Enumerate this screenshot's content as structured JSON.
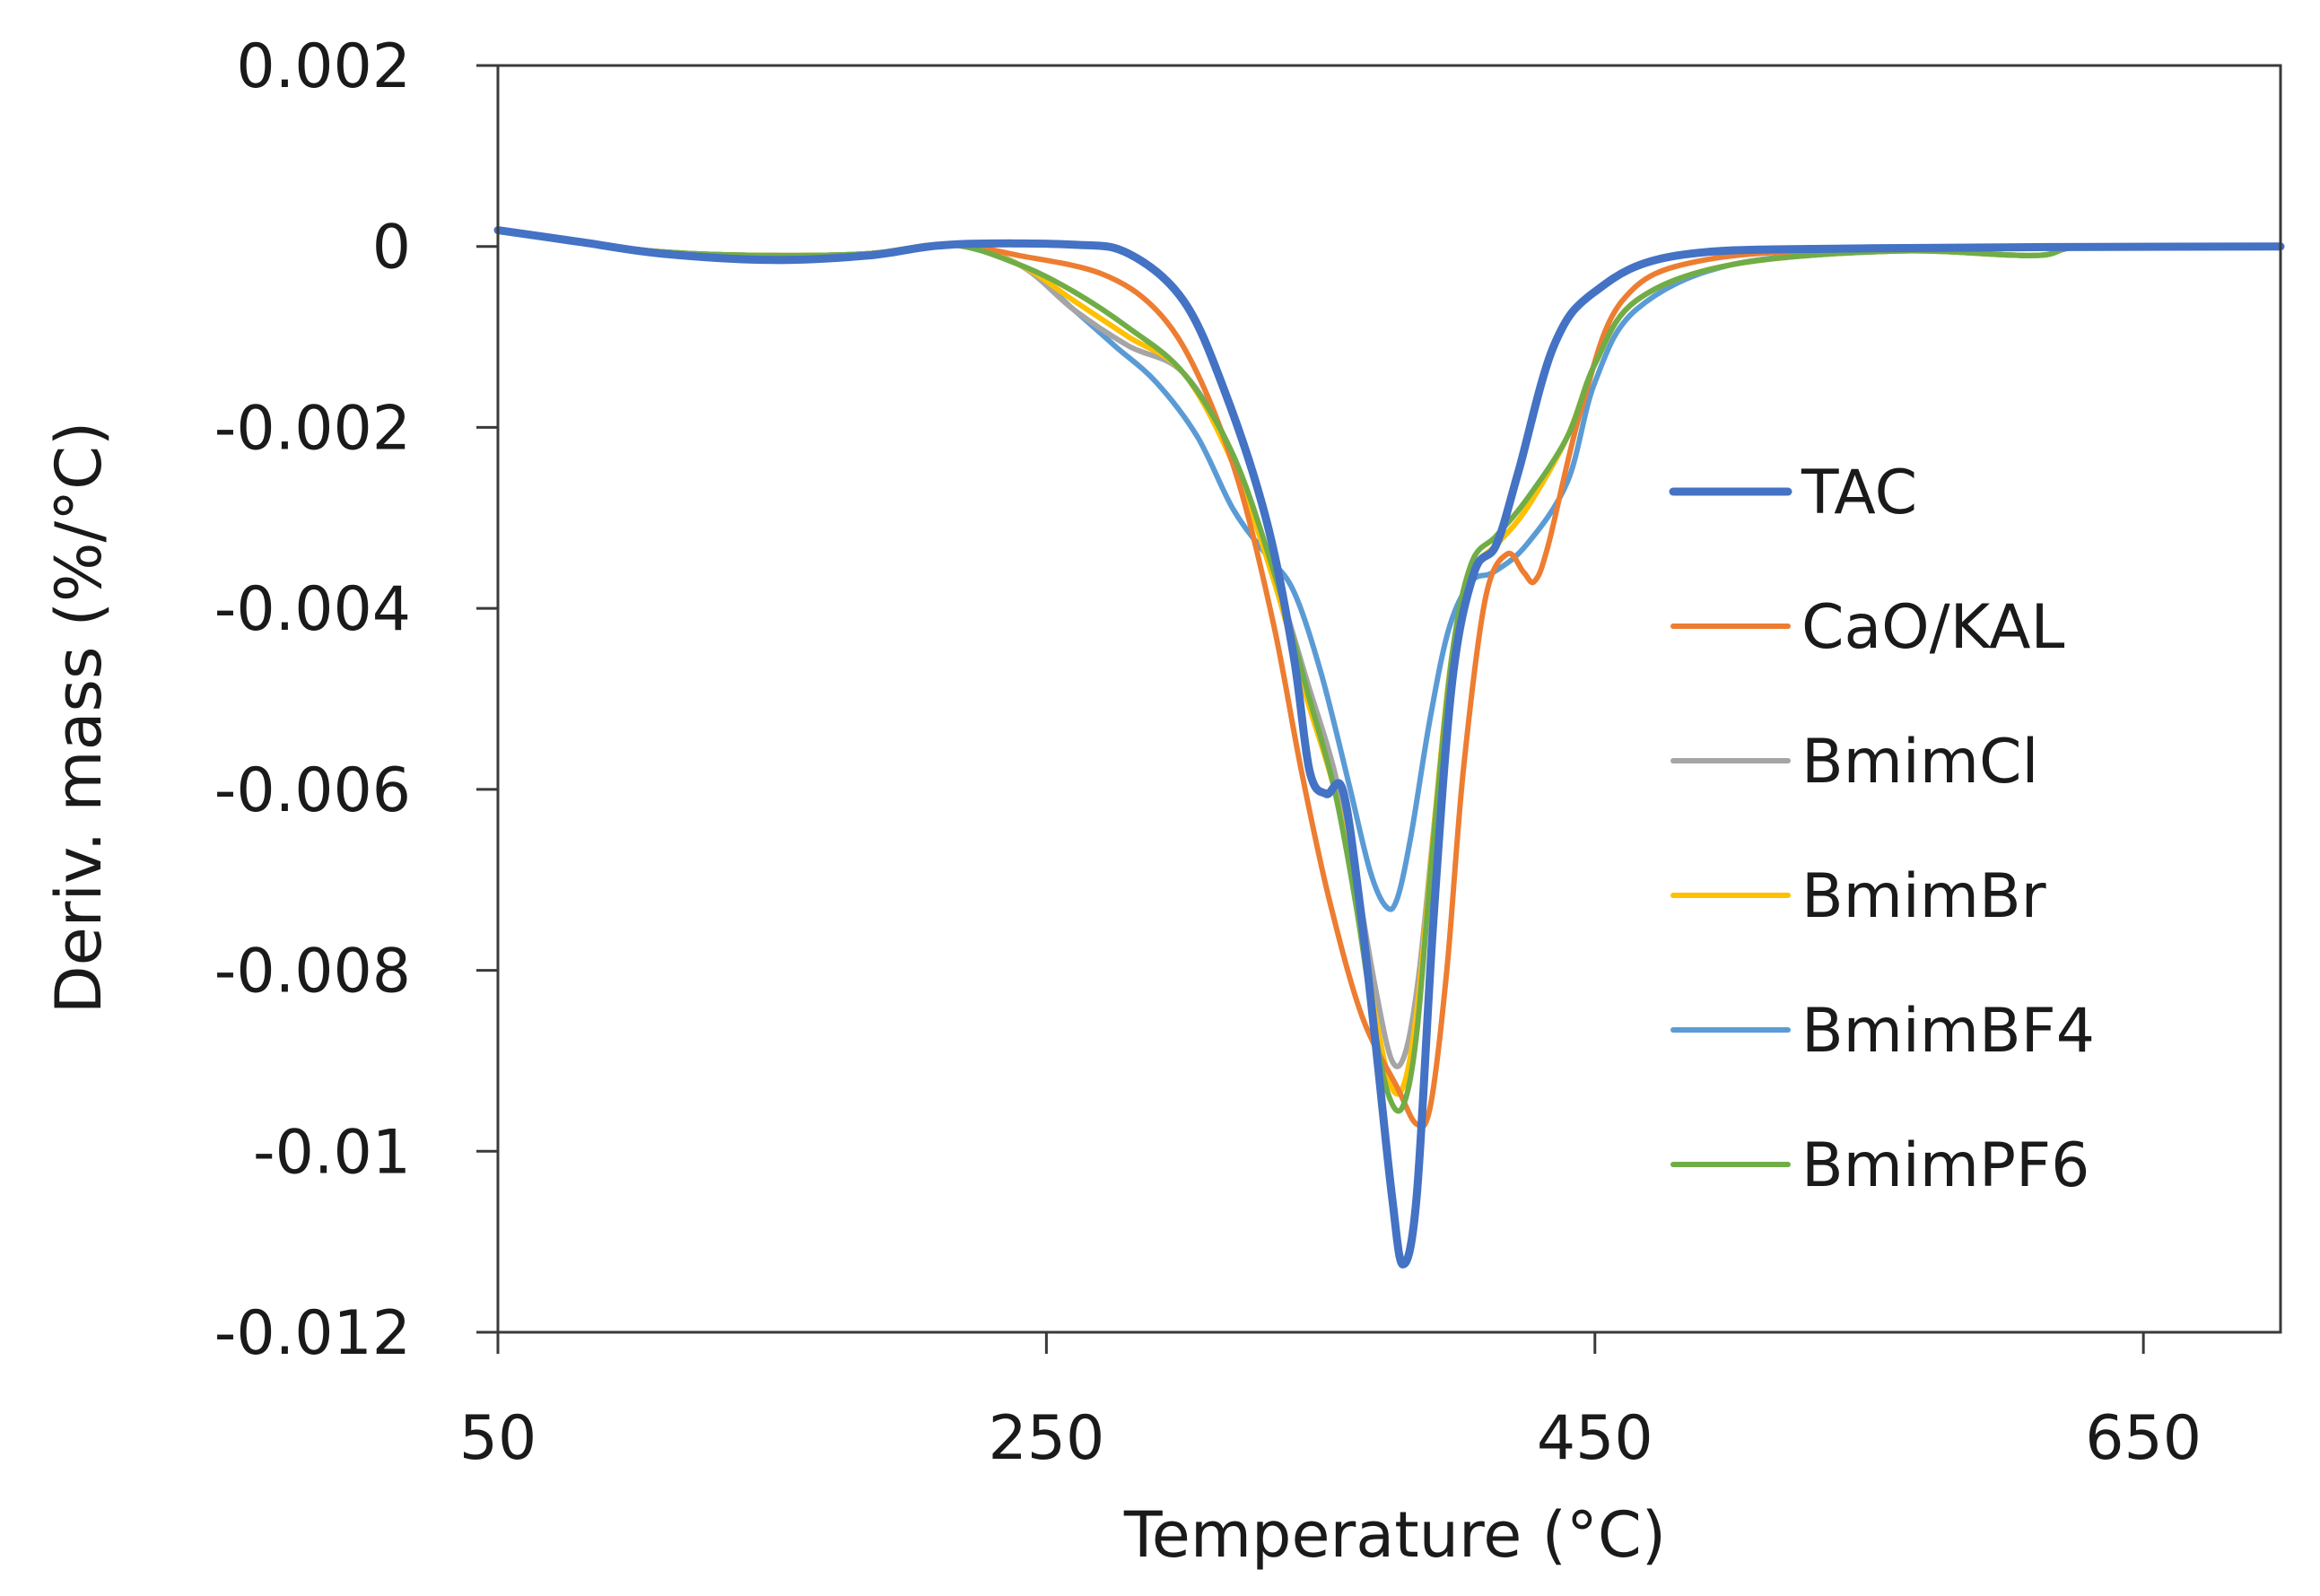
{
  "chart_data": {
    "type": "line",
    "title": "",
    "xlabel": "Temperature (°C)",
    "ylabel": "Deriv. mass (%/°C)",
    "xlim": [
      50,
      700
    ],
    "ylim": [
      -0.012,
      0.002
    ],
    "x_ticks": [
      50,
      250,
      450,
      650
    ],
    "x_tick_labels": [
      "50",
      "250",
      "450",
      "650"
    ],
    "y_ticks": [
      0.002,
      0,
      -0.002,
      -0.004,
      -0.006,
      -0.008,
      -0.01,
      -0.012
    ],
    "y_tick_labels": [
      "0.002",
      "0",
      "-0.002",
      "-0.004",
      "-0.006",
      "-0.008",
      "-0.01",
      "-0.012"
    ],
    "grid": false,
    "legend_position": "right",
    "series": [
      {
        "name": "TAC",
        "color": "#4472C4",
        "points": [
          [
            50,
            0.00018
          ],
          [
            80,
            5e-05
          ],
          [
            110,
            -8e-05
          ],
          [
            150,
            -0.00015
          ],
          [
            185,
            -0.0001
          ],
          [
            215,
            2e-05
          ],
          [
            260,
            2e-05
          ],
          [
            280,
            -8e-05
          ],
          [
            300,
            -0.0006
          ],
          [
            315,
            -0.0016
          ],
          [
            330,
            -0.003
          ],
          [
            340,
            -0.0045
          ],
          [
            346,
            -0.0058
          ],
          [
            352,
            -0.00605
          ],
          [
            358,
            -0.006
          ],
          [
            364,
            -0.0072
          ],
          [
            370,
            -0.0088
          ],
          [
            376,
            -0.0105
          ],
          [
            380,
            -0.01125
          ],
          [
            385,
            -0.0105
          ],
          [
            391,
            -0.0075
          ],
          [
            398,
            -0.0048
          ],
          [
            406,
            -0.0036
          ],
          [
            414,
            -0.0033
          ],
          [
            422,
            -0.0025
          ],
          [
            435,
            -0.0011
          ],
          [
            450,
            -0.0005
          ],
          [
            480,
            -0.0001
          ],
          [
            550,
            -2e-05
          ],
          [
            700,
            0.0
          ]
        ]
      },
      {
        "name": "CaO/KAL",
        "color": "#ED7D31",
        "points": [
          [
            50,
            0.00018
          ],
          [
            80,
            5e-05
          ],
          [
            110,
            -6e-05
          ],
          [
            150,
            -0.0001
          ],
          [
            185,
            -8e-05
          ],
          [
            215,
            2e-05
          ],
          [
            240,
            -0.0001
          ],
          [
            270,
            -0.0003
          ],
          [
            290,
            -0.0007
          ],
          [
            305,
            -0.0014
          ],
          [
            320,
            -0.0026
          ],
          [
            333,
            -0.0042
          ],
          [
            343,
            -0.0058
          ],
          [
            353,
            -0.0072
          ],
          [
            365,
            -0.0085
          ],
          [
            378,
            -0.0093
          ],
          [
            385,
            -0.0097
          ],
          [
            390,
            -0.0095
          ],
          [
            396,
            -0.008
          ],
          [
            402,
            -0.0058
          ],
          [
            410,
            -0.0039
          ],
          [
            418,
            -0.0034
          ],
          [
            424,
            -0.0036
          ],
          [
            428,
            -0.0037
          ],
          [
            433,
            -0.0033
          ],
          [
            445,
            -0.0018
          ],
          [
            460,
            -0.0006
          ],
          [
            490,
            -0.00015
          ],
          [
            560,
            -3e-05
          ],
          [
            700,
            0.0
          ]
        ]
      },
      {
        "name": "BmimCl",
        "color": "#A5A5A5",
        "points": [
          [
            50,
            0.00018
          ],
          [
            80,
            5e-05
          ],
          [
            110,
            -6e-05
          ],
          [
            150,
            -0.0001
          ],
          [
            185,
            -8e-05
          ],
          [
            215,
            2e-05
          ],
          [
            240,
            -0.0002
          ],
          [
            260,
            -0.0007
          ],
          [
            280,
            -0.0011
          ],
          [
            300,
            -0.0014
          ],
          [
            318,
            -0.0023
          ],
          [
            333,
            -0.0036
          ],
          [
            345,
            -0.0048
          ],
          [
            355,
            -0.0058
          ],
          [
            363,
            -0.007
          ],
          [
            370,
            -0.0082
          ],
          [
            376,
            -0.009
          ],
          [
            381,
            -0.0089
          ],
          [
            386,
            -0.008
          ],
          [
            392,
            -0.0062
          ],
          [
            398,
            -0.0045
          ],
          [
            405,
            -0.0036
          ],
          [
            414,
            -0.0033
          ],
          [
            425,
            -0.0029
          ],
          [
            440,
            -0.0021
          ],
          [
            450,
            -0.0013
          ],
          [
            465,
            -0.0006
          ],
          [
            500,
            -0.0002
          ],
          [
            560,
            -5e-05
          ],
          [
            610,
            -0.0001
          ],
          [
            630,
            0.0
          ],
          [
            700,
            0.0
          ]
        ]
      },
      {
        "name": "BmimBr",
        "color": "#FFC000",
        "points": [
          [
            50,
            0.00018
          ],
          [
            80,
            5e-05
          ],
          [
            110,
            -6e-05
          ],
          [
            150,
            -0.0001
          ],
          [
            185,
            -8e-05
          ],
          [
            215,
            2e-05
          ],
          [
            240,
            -0.0002
          ],
          [
            260,
            -0.0006
          ],
          [
            280,
            -0.001
          ],
          [
            300,
            -0.0014
          ],
          [
            318,
            -0.0024
          ],
          [
            333,
            -0.0037
          ],
          [
            345,
            -0.005
          ],
          [
            355,
            -0.006
          ],
          [
            363,
            -0.0072
          ],
          [
            370,
            -0.0085
          ],
          [
            376,
            -0.0093
          ],
          [
            381,
            -0.0092
          ],
          [
            386,
            -0.0082
          ],
          [
            392,
            -0.0062
          ],
          [
            398,
            -0.0045
          ],
          [
            405,
            -0.0036
          ],
          [
            414,
            -0.0033
          ],
          [
            425,
            -0.0029
          ],
          [
            440,
            -0.0021
          ],
          [
            450,
            -0.0013
          ],
          [
            465,
            -0.0006
          ],
          [
            500,
            -0.0002
          ],
          [
            560,
            -5e-05
          ],
          [
            610,
            -0.0001
          ],
          [
            630,
            0.0
          ],
          [
            700,
            0.0
          ]
        ]
      },
      {
        "name": "BmimBF4",
        "color": "#5B9BD5",
        "points": [
          [
            50,
            0.00018
          ],
          [
            80,
            5e-05
          ],
          [
            110,
            -6e-05
          ],
          [
            150,
            -0.0001
          ],
          [
            185,
            -8e-05
          ],
          [
            215,
            2e-05
          ],
          [
            240,
            -0.0002
          ],
          [
            260,
            -0.0007
          ],
          [
            275,
            -0.0011
          ],
          [
            290,
            -0.0015
          ],
          [
            305,
            -0.0021
          ],
          [
            318,
            -0.0029
          ],
          [
            330,
            -0.0034
          ],
          [
            340,
            -0.0038
          ],
          [
            350,
            -0.0047
          ],
          [
            360,
            -0.0059
          ],
          [
            368,
            -0.0069
          ],
          [
            374,
            -0.0073
          ],
          [
            378,
            -0.0072
          ],
          [
            383,
            -0.0065
          ],
          [
            390,
            -0.0052
          ],
          [
            397,
            -0.0042
          ],
          [
            405,
            -0.0037
          ],
          [
            413,
            -0.0036
          ],
          [
            425,
            -0.0033
          ],
          [
            440,
            -0.0026
          ],
          [
            450,
            -0.0015
          ],
          [
            465,
            -0.0007
          ],
          [
            500,
            -0.0002
          ],
          [
            560,
            -5e-05
          ],
          [
            610,
            -0.0001
          ],
          [
            630,
            0.0
          ],
          [
            700,
            0.0
          ]
        ]
      },
      {
        "name": "BmimPF6",
        "color": "#70AD47",
        "points": [
          [
            50,
            0.00018
          ],
          [
            80,
            5e-05
          ],
          [
            110,
            -6e-05
          ],
          [
            150,
            -0.0001
          ],
          [
            185,
            -8e-05
          ],
          [
            215,
            2e-05
          ],
          [
            240,
            -0.0002
          ],
          [
            260,
            -0.0005
          ],
          [
            280,
            -0.0009
          ],
          [
            300,
            -0.0014
          ],
          [
            318,
            -0.0023
          ],
          [
            333,
            -0.0036
          ],
          [
            345,
            -0.0049
          ],
          [
            355,
            -0.006
          ],
          [
            363,
            -0.0073
          ],
          [
            370,
            -0.0087
          ],
          [
            375,
            -0.0094
          ],
          [
            380,
            -0.0095
          ],
          [
            385,
            -0.0087
          ],
          [
            391,
            -0.0066
          ],
          [
            398,
            -0.0045
          ],
          [
            405,
            -0.0035
          ],
          [
            414,
            -0.0032
          ],
          [
            425,
            -0.0028
          ],
          [
            440,
            -0.0021
          ],
          [
            450,
            -0.0013
          ],
          [
            465,
            -0.0006
          ],
          [
            500,
            -0.0002
          ],
          [
            560,
            -5e-05
          ],
          [
            610,
            -0.0001
          ],
          [
            630,
            0.0
          ],
          [
            700,
            0.0
          ]
        ]
      }
    ]
  }
}
